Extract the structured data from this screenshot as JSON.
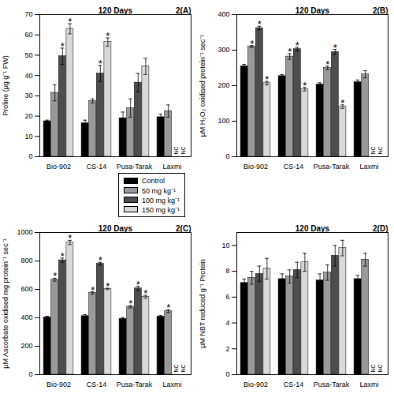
{
  "chart_data": [
    {
      "type": "bar",
      "title": "120 Days",
      "panel_label": "2(A)",
      "y_label": "Proline (μg g⁻¹ FW)",
      "legend": "bottom right",
      "categories": [
        "Bio-902",
        "CS-14",
        "Pusa-Tarak",
        "Laxmi"
      ],
      "ylim": [
        0,
        70
      ],
      "yticks": [
        0,
        10,
        20,
        30,
        40,
        50,
        60,
        70
      ],
      "series": [
        {
          "name": "Control",
          "color": "#000000",
          "values": [
            17.5,
            16.5,
            19,
            19.5
          ],
          "errors": [
            0.5,
            1.5,
            3,
            1.5
          ],
          "significance": [
            null,
            null,
            null,
            null
          ]
        },
        {
          "name": "50 mg kg⁻¹",
          "color": "#999999",
          "values": [
            31.5,
            27.5,
            24,
            22.5
          ],
          "errors": [
            4,
            1,
            4.5,
            3
          ],
          "significance": [
            null,
            null,
            null,
            null
          ]
        },
        {
          "name": "100 mg kg⁻¹",
          "color": "#4d4d4d",
          "values": [
            49.5,
            41,
            36.5,
            null
          ],
          "errors": [
            4,
            4,
            4.5,
            null
          ],
          "significance": [
            "*",
            "*",
            null,
            null
          ],
          "value_labels": [
            null,
            null,
            null,
            "NC"
          ]
        },
        {
          "name": "150 mg kg⁻¹",
          "color": "#d9d9d9",
          "values": [
            63,
            56.5,
            44.5,
            null
          ],
          "errors": [
            2.5,
            2,
            4,
            null
          ],
          "significance": [
            "*",
            "*",
            null,
            null
          ],
          "value_labels": [
            null,
            null,
            null,
            "NC"
          ]
        }
      ]
    },
    {
      "type": "bar",
      "title": "120 Days",
      "panel_label": "2(B)",
      "y_label": "μM H₂O₂ oxidised protein⁻¹ sec⁻¹",
      "categories": [
        "Bio-902",
        "CS-14",
        "Pusa-Tarak",
        "Laxmi"
      ],
      "ylim": [
        0,
        400
      ],
      "yticks": [
        0,
        100,
        200,
        300,
        400
      ],
      "series": [
        {
          "name": "Control",
          "color": "#000000",
          "values": [
            255,
            227,
            203,
            210
          ],
          "errors": [
            5,
            4,
            5,
            6
          ],
          "significance": [
            null,
            null,
            null,
            null
          ]
        },
        {
          "name": "50 mg kg⁻¹",
          "color": "#999999",
          "values": [
            310,
            282,
            250,
            232
          ],
          "errors": [
            3,
            8,
            5,
            10
          ],
          "significance": [
            "*",
            "*",
            "*",
            null
          ]
        },
        {
          "name": "100 mg kg⁻¹",
          "color": "#4d4d4d",
          "values": [
            362,
            303,
            295,
            null
          ],
          "errors": [
            5,
            5,
            7,
            null
          ],
          "significance": [
            "*",
            "*",
            "*",
            null
          ],
          "value_labels": [
            null,
            null,
            null,
            "NC"
          ]
        },
        {
          "name": "150 mg kg⁻¹",
          "color": "#d9d9d9",
          "values": [
            207,
            190,
            141,
            null
          ],
          "errors": [
            5,
            5,
            5,
            null
          ],
          "significance": [
            "*",
            "*",
            "*",
            null
          ],
          "value_labels": [
            null,
            null,
            null,
            "NC"
          ]
        }
      ]
    },
    {
      "type": "bar",
      "title": "120 Days",
      "panel_label": "2(C)",
      "y_label": "μM Ascorbate oxidised mg protein⁻¹ sec⁻¹",
      "categories": [
        "Bio-902",
        "CS-14",
        "Pusa-Tarak",
        "Laxmi"
      ],
      "ylim": [
        0,
        1000
      ],
      "yticks": [
        0,
        200,
        400,
        600,
        800,
        1000
      ],
      "series": [
        {
          "name": "Control",
          "color": "#000000",
          "values": [
            403,
            412,
            393,
            408
          ],
          "errors": [
            8,
            10,
            8,
            8
          ],
          "significance": [
            null,
            null,
            null,
            null
          ]
        },
        {
          "name": "50 mg kg⁻¹",
          "color": "#999999",
          "values": [
            668,
            575,
            478,
            447
          ],
          "errors": [
            10,
            8,
            8,
            10
          ],
          "significance": [
            "*",
            "*",
            "*",
            "*"
          ]
        },
        {
          "name": "100 mg kg⁻¹",
          "color": "#4d4d4d",
          "values": [
            805,
            780,
            607,
            null
          ],
          "errors": [
            15,
            10,
            15,
            null
          ],
          "significance": [
            "*",
            "*",
            "*",
            null
          ],
          "value_labels": [
            null,
            null,
            null,
            "NC"
          ]
        },
        {
          "name": "150 mg kg⁻¹",
          "color": "#d9d9d9",
          "values": [
            930,
            603,
            548,
            null
          ],
          "errors": [
            15,
            5,
            10,
            null
          ],
          "significance": [
            "*",
            "*",
            "*",
            null
          ],
          "value_labels": [
            null,
            null,
            null,
            "NC"
          ]
        }
      ]
    },
    {
      "type": "bar",
      "title": "120 Days",
      "panel_label": "2(D)",
      "y_label": "μM NBT reduced g⁻¹ Protein",
      "categories": [
        "Bio-902",
        "CS-14",
        "Pusa-Tarak",
        "Laxmi"
      ],
      "ylim": [
        0,
        11
      ],
      "yticks": [
        0,
        2,
        4,
        6,
        8,
        10
      ],
      "series": [
        {
          "name": "Control",
          "color": "#000000",
          "values": [
            7.1,
            7.4,
            7.3,
            7.4
          ],
          "errors": [
            0.3,
            0.4,
            0.5,
            0.3
          ]
        },
        {
          "name": "50 mg kg⁻¹",
          "color": "#999999",
          "values": [
            7.5,
            7.6,
            7.9,
            8.9
          ],
          "errors": [
            0.5,
            0.5,
            0.6,
            0.5
          ]
        },
        {
          "name": "100 mg kg⁻¹",
          "color": "#4d4d4d",
          "values": [
            7.8,
            8.1,
            9.2,
            null
          ],
          "errors": [
            0.6,
            0.6,
            0.8,
            null
          ],
          "value_labels": [
            null,
            null,
            null,
            "NC"
          ]
        },
        {
          "name": "150 mg kg⁻¹",
          "color": "#d9d9d9",
          "values": [
            8.2,
            8.7,
            9.8,
            null
          ],
          "errors": [
            0.8,
            0.7,
            0.6,
            null
          ],
          "value_labels": [
            null,
            null,
            null,
            "NC"
          ]
        }
      ]
    }
  ]
}
